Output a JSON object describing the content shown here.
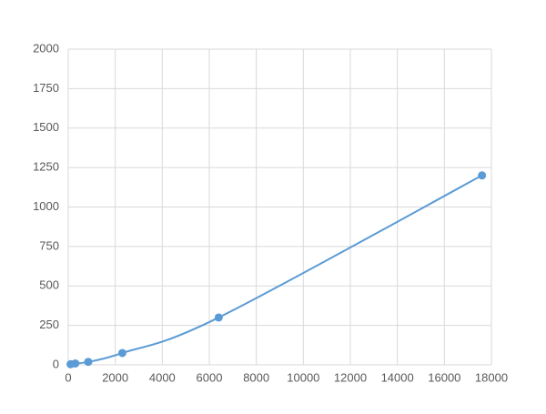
{
  "chart_data": {
    "type": "scatter-line",
    "series": [
      {
        "color": "#5b9bd5",
        "x": [
          100,
          300,
          850,
          2300,
          6400,
          17600
        ],
        "values": [
          4,
          9,
          19,
          75,
          300,
          1200
        ]
      }
    ],
    "xlim": [
      0,
      18000
    ],
    "xticks": [
      0,
      2000,
      4000,
      6000,
      8000,
      10000,
      12000,
      14000,
      16000,
      18000
    ],
    "ylim": [
      0,
      2000
    ],
    "yticks": [
      0,
      250,
      500,
      750,
      1000,
      1250,
      1500,
      1750,
      2000
    ],
    "grid": true,
    "smooth": true
  }
}
